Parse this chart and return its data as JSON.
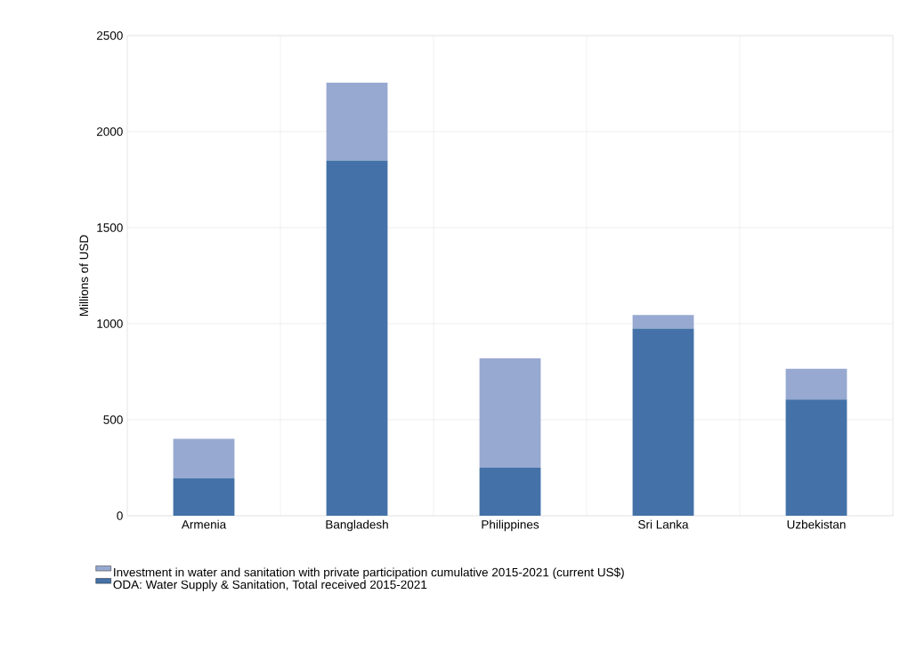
{
  "chart_data": {
    "type": "bar",
    "stacked": true,
    "categories": [
      "Armenia",
      "Bangladesh",
      "Philippines",
      "Sri Lanka",
      "Uzbekistan"
    ],
    "series": [
      {
        "name": "ODA: Water Supply & Sanitation, Total received 2015-2021",
        "color": "#4472a8",
        "values": [
          195,
          1850,
          250,
          975,
          605
        ]
      },
      {
        "name": "Investment in water and sanitation with private participation cumulative 2015-2021 (current US$)",
        "color": "#97a9d1",
        "values": [
          205,
          405,
          570,
          70,
          160
        ]
      }
    ],
    "ylabel": "Millions of USD",
    "ylim": [
      0,
      2500
    ],
    "yticks": [
      0,
      500,
      1000,
      1500,
      2000,
      2500
    ],
    "grid": true,
    "legend": "bottom"
  }
}
